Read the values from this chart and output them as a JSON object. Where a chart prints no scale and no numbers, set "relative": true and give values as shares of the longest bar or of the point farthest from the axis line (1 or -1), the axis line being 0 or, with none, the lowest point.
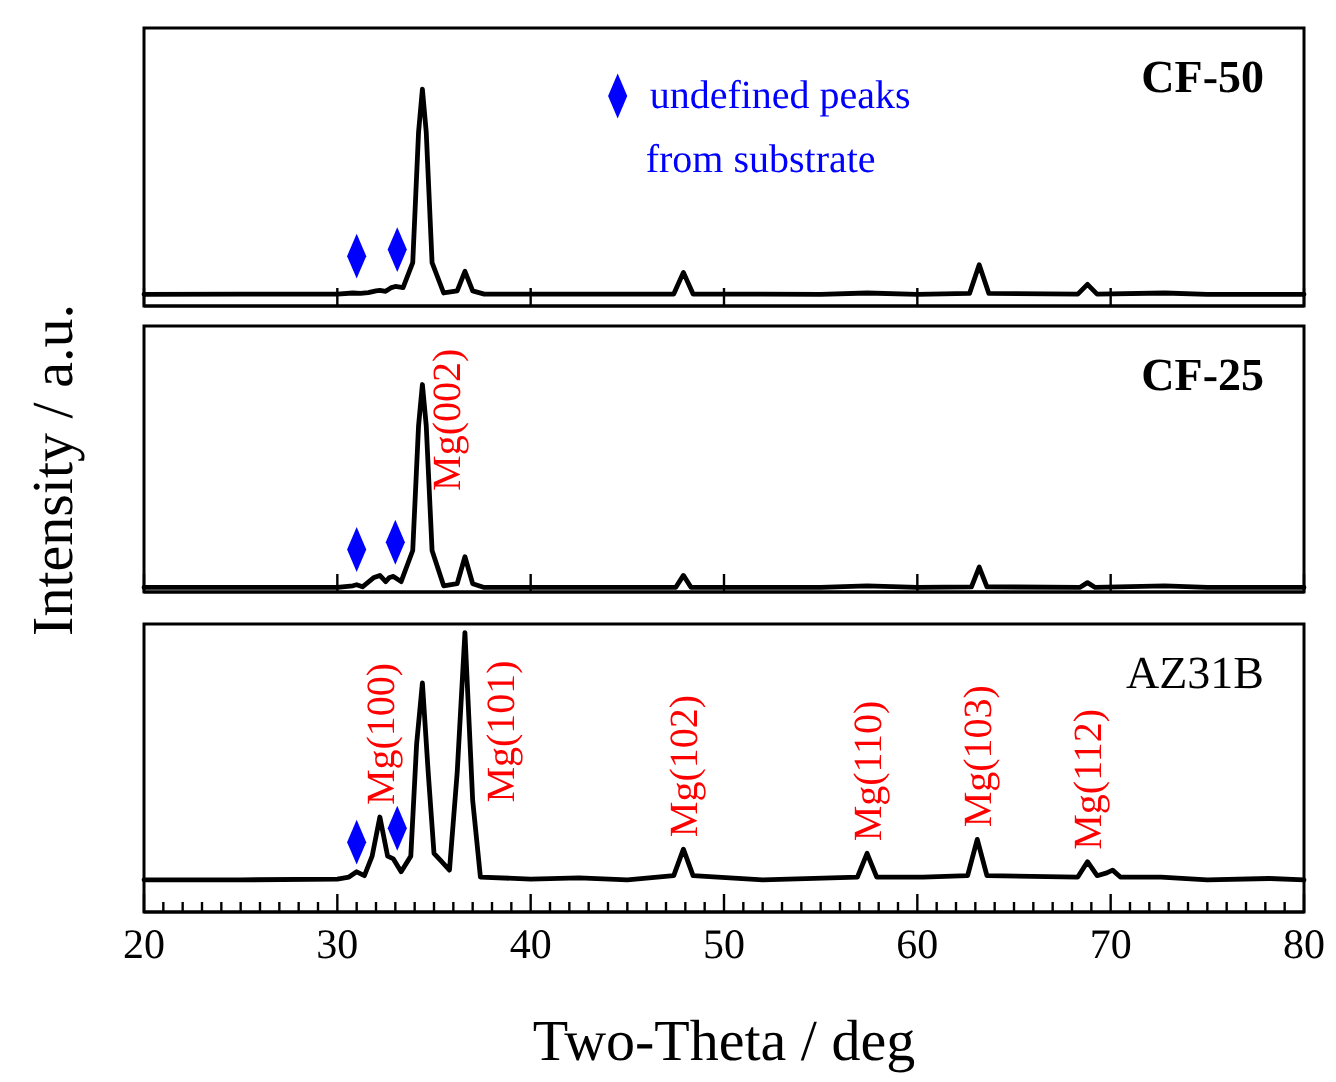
{
  "chart_data": [
    {
      "type": "line",
      "title": "CF-50",
      "relative": true,
      "xlim": [
        20,
        80
      ],
      "xticks": [
        20,
        30,
        40,
        50,
        60,
        70,
        80
      ],
      "tick_labels": false,
      "legend": "top",
      "series": [
        {
          "color": "#000000",
          "x": [
            20,
            25,
            30,
            30.8,
            31.2,
            31.6,
            32.0,
            32.2,
            32.5,
            32.8,
            33.0,
            33.4,
            33.9,
            34.2,
            34.4,
            34.6,
            34.9,
            35.5,
            36.2,
            36.6,
            37.0,
            37.6,
            42,
            47.4,
            47.9,
            48.4,
            55,
            57.4,
            60,
            62.7,
            63.2,
            63.7,
            68.3,
            68.8,
            69.3,
            72.8,
            75,
            80
          ],
          "values": [
            0.054,
            0.055,
            0.055,
            0.06,
            0.058,
            0.062,
            0.07,
            0.072,
            0.068,
            0.085,
            0.09,
            0.085,
            0.2,
            0.8,
            1,
            0.8,
            0.2,
            0.06,
            0.07,
            0.16,
            0.07,
            0.055,
            0.055,
            0.055,
            0.155,
            0.055,
            0.054,
            0.06,
            0.054,
            0.058,
            0.19,
            0.058,
            0.055,
            0.1,
            0.055,
            0.06,
            0.054,
            0.054
          ]
        },
        {
          "type": "scatter",
          "marker": "diamond",
          "name": "undefined peaks from substrate",
          "color": "#0000ff",
          "x": [
            31.0,
            33.1
          ],
          "values": [
            0.23,
            0.26
          ]
        }
      ]
    },
    {
      "type": "line",
      "title": "CF-25",
      "relative": true,
      "xlim": [
        20,
        80
      ],
      "xticks": [
        20,
        30,
        40,
        50,
        60,
        70,
        80
      ],
      "tick_labels": false,
      "ylabel": "Intensity / a.u.",
      "annotations": [
        "Mg(002)"
      ],
      "series": [
        {
          "color": "#000000",
          "x": [
            20,
            25,
            30,
            30.8,
            31.0,
            31.3,
            31.9,
            32.2,
            32.5,
            32.7,
            32.9,
            33.3,
            33.9,
            34.2,
            34.4,
            34.6,
            34.9,
            35.5,
            36.2,
            36.6,
            37.0,
            37.6,
            42,
            47.5,
            47.9,
            48.3,
            55,
            57.4,
            60,
            62.8,
            63.2,
            63.6,
            68.4,
            68.8,
            69.2,
            72.8,
            75,
            80
          ],
          "values": [
            0.022,
            0.022,
            0.022,
            0.03,
            0.035,
            0.025,
            0.07,
            0.08,
            0.05,
            0.07,
            0.075,
            0.05,
            0.2,
            0.8,
            1,
            0.8,
            0.2,
            0.03,
            0.04,
            0.17,
            0.04,
            0.022,
            0.022,
            0.022,
            0.08,
            0.022,
            0.022,
            0.03,
            0.022,
            0.025,
            0.12,
            0.025,
            0.022,
            0.045,
            0.022,
            0.03,
            0.022,
            0.022
          ]
        },
        {
          "type": "scatter",
          "marker": "diamond",
          "color": "#0000ff",
          "x": [
            31.0,
            33.0
          ],
          "values": [
            0.205,
            0.24
          ]
        }
      ]
    },
    {
      "type": "line",
      "title": "AZ31B",
      "relative": true,
      "xlim": [
        20,
        80
      ],
      "xlabel": "Two-Theta / deg",
      "tick_labels": "x",
      "xticks": [
        20,
        {
          "value": 21,
          "label": null
        },
        {
          "value": 22,
          "label": null
        },
        {
          "value": 23,
          "label": null
        },
        {
          "value": 24,
          "label": null
        },
        {
          "value": 25,
          "label": null
        },
        {
          "value": 26,
          "label": null
        },
        {
          "value": 27,
          "label": null
        },
        {
          "value": 28,
          "label": null
        },
        {
          "value": 29,
          "label": null
        },
        30,
        {
          "value": 31,
          "label": null
        },
        {
          "value": 32,
          "label": null
        },
        {
          "value": 33,
          "label": null
        },
        {
          "value": 34,
          "label": null
        },
        {
          "value": 35,
          "label": null
        },
        {
          "value": 36,
          "label": null
        },
        {
          "value": 37,
          "label": null
        },
        {
          "value": 38,
          "label": null
        },
        {
          "value": 39,
          "label": null
        },
        40,
        {
          "value": 41,
          "label": null
        },
        {
          "value": 42,
          "label": null
        },
        {
          "value": 43,
          "label": null
        },
        {
          "value": 44,
          "label": null
        },
        {
          "value": 45,
          "label": null
        },
        {
          "value": 46,
          "label": null
        },
        {
          "value": 47,
          "label": null
        },
        {
          "value": 48,
          "label": null
        },
        {
          "value": 49,
          "label": null
        },
        50,
        {
          "value": 51,
          "label": null
        },
        {
          "value": 52,
          "label": null
        },
        {
          "value": 53,
          "label": null
        },
        {
          "value": 54,
          "label": null
        },
        {
          "value": 55,
          "label": null
        },
        {
          "value": 56,
          "label": null
        },
        {
          "value": 57,
          "label": null
        },
        {
          "value": 58,
          "label": null
        },
        {
          "value": 59,
          "label": null
        },
        60,
        {
          "value": 61,
          "label": null
        },
        {
          "value": 62,
          "label": null
        },
        {
          "value": 63,
          "label": null
        },
        {
          "value": 64,
          "label": null
        },
        {
          "value": 65,
          "label": null
        },
        {
          "value": 66,
          "label": null
        },
        {
          "value": 67,
          "label": null
        },
        {
          "value": 68,
          "label": null
        },
        {
          "value": 69,
          "label": null
        },
        70,
        {
          "value": 71,
          "label": null
        },
        {
          "value": 72,
          "label": null
        },
        {
          "value": 73,
          "label": null
        },
        {
          "value": 74,
          "label": null
        },
        {
          "value": 75,
          "label": null
        },
        {
          "value": 76,
          "label": null
        },
        {
          "value": 77,
          "label": null
        },
        {
          "value": 78,
          "label": null
        },
        {
          "value": 79,
          "label": null
        },
        80
      ],
      "annotations": [
        {
          "text": "Mg(100)",
          "x": 32.2,
          "y": 0.34
        },
        "Mg(101)",
        {
          "text": "Mg(102)",
          "x": 47.9,
          "y": 0.225
        },
        {
          "text": "Mg(110)",
          "x": 57.4,
          "y": 0.21
        },
        {
          "text": "Mg(103)",
          "x": 63.1,
          "y": 0.26
        },
        {
          "text": "Mg(112)",
          "x": 68.8,
          "y": 0.18
        }
      ],
      "series": [
        {
          "color": "#000000",
          "x": [
            20,
            25,
            30,
            30.6,
            31.0,
            31.4,
            31.8,
            32.2,
            32.6,
            32.9,
            33.3,
            33.8,
            34.1,
            34.4,
            34.7,
            35.0,
            35.4,
            35.8,
            36.2,
            36.6,
            37.0,
            37.4,
            40,
            42.5,
            45,
            47.4,
            47.9,
            48.4,
            52,
            56.9,
            57.4,
            57.9,
            60.3,
            62.6,
            63.1,
            63.6,
            68.3,
            68.8,
            69.3,
            69.8,
            70.1,
            70.5,
            72.6,
            75,
            78.2,
            80
          ],
          "values": [
            0.115,
            0.115,
            0.118,
            0.125,
            0.144,
            0.13,
            0.2,
            0.34,
            0.2,
            0.19,
            0.144,
            0.2,
            0.6,
            0.82,
            0.5,
            0.21,
            0.18,
            0.15,
            0.5,
            1,
            0.4,
            0.125,
            0.118,
            0.122,
            0.115,
            0.13,
            0.225,
            0.13,
            0.115,
            0.125,
            0.21,
            0.125,
            0.125,
            0.13,
            0.26,
            0.13,
            0.125,
            0.18,
            0.13,
            0.14,
            0.15,
            0.125,
            0.125,
            0.115,
            0.12,
            0.115
          ]
        },
        {
          "type": "scatter",
          "marker": "diamond",
          "color": "#0000ff",
          "x": [
            31.0,
            33.1
          ],
          "values": [
            0.25,
            0.3
          ]
        }
      ]
    }
  ]
}
